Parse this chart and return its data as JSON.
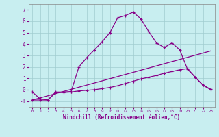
{
  "xlabel": "Windchill (Refroidissement éolien,°C)",
  "bg_color": "#c8eef0",
  "grid_color": "#a0ccd0",
  "line_color": "#880088",
  "xlim": [
    -0.5,
    23.5
  ],
  "ylim": [
    -1.5,
    7.5
  ],
  "yticks": [
    -1,
    0,
    1,
    2,
    3,
    4,
    5,
    6,
    7
  ],
  "xticks": [
    0,
    1,
    2,
    3,
    4,
    5,
    6,
    7,
    8,
    9,
    10,
    11,
    12,
    13,
    14,
    15,
    16,
    17,
    18,
    19,
    20,
    21,
    22,
    23
  ],
  "curve1_x": [
    0,
    1,
    2,
    3,
    4,
    5,
    6,
    7,
    8,
    9,
    10,
    11,
    12,
    13,
    14,
    15,
    16,
    17,
    18,
    19,
    20,
    21,
    22,
    23
  ],
  "curve1_y": [
    -0.2,
    -0.8,
    -0.9,
    -0.2,
    -0.2,
    -0.15,
    2.0,
    2.8,
    3.5,
    4.2,
    5.0,
    6.3,
    6.5,
    6.8,
    6.2,
    5.1,
    4.1,
    3.7,
    4.1,
    3.5,
    1.8,
    1.1,
    0.4,
    0.05
  ],
  "curve2_x": [
    0,
    23
  ],
  "curve2_y": [
    -0.9,
    3.4
  ],
  "curve3_x": [
    0,
    1,
    2,
    3,
    4,
    5,
    6,
    7,
    8,
    9,
    10,
    11,
    12,
    13,
    14,
    15,
    16,
    17,
    18,
    19,
    20,
    21,
    22,
    23
  ],
  "curve3_y": [
    -0.9,
    -0.9,
    -0.9,
    -0.25,
    -0.25,
    -0.2,
    -0.1,
    -0.05,
    0.0,
    0.1,
    0.2,
    0.35,
    0.55,
    0.75,
    0.95,
    1.1,
    1.25,
    1.45,
    1.6,
    1.75,
    1.85,
    1.1,
    0.4,
    0.0
  ]
}
